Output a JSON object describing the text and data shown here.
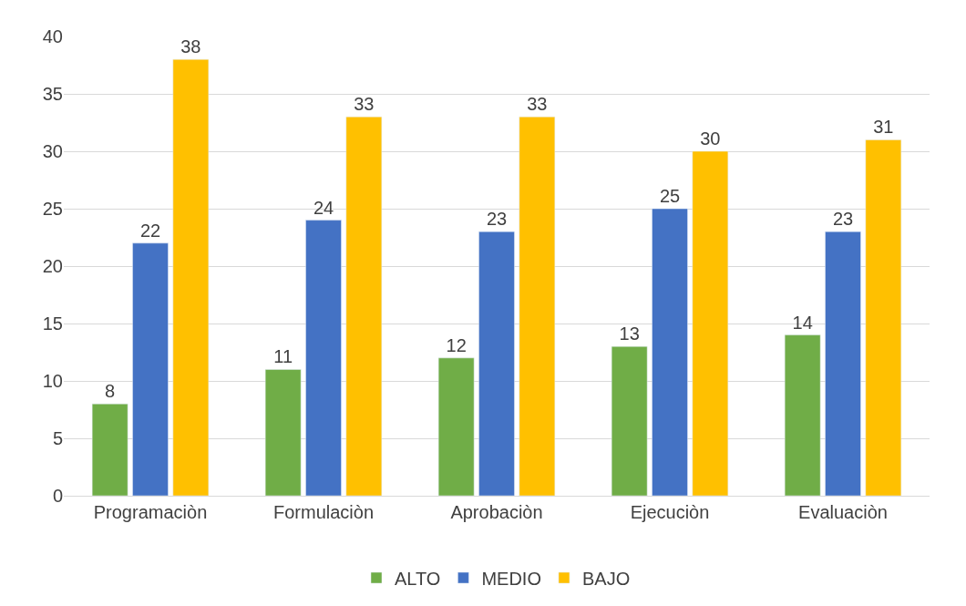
{
  "chart_data": {
    "type": "bar",
    "categories": [
      "Programaciòn",
      "Formulaciòn",
      "Aprobaciòn",
      "Ejecuciòn",
      "Evaluaciòn"
    ],
    "series": [
      {
        "name": "ALTO",
        "color": "#70ad47",
        "values": [
          8,
          11,
          12,
          13,
          14
        ]
      },
      {
        "name": "MEDIO",
        "color": "#4472c4",
        "values": [
          22,
          24,
          23,
          25,
          23
        ]
      },
      {
        "name": "BAJO",
        "color": "#ffc000",
        "values": [
          38,
          33,
          33,
          30,
          31
        ]
      }
    ],
    "ylim": [
      0,
      40
    ],
    "yticks": [
      0,
      5,
      10,
      15,
      20,
      25,
      30,
      35,
      40
    ],
    "grid": "y",
    "legend": "bottom",
    "data_labels": true
  }
}
